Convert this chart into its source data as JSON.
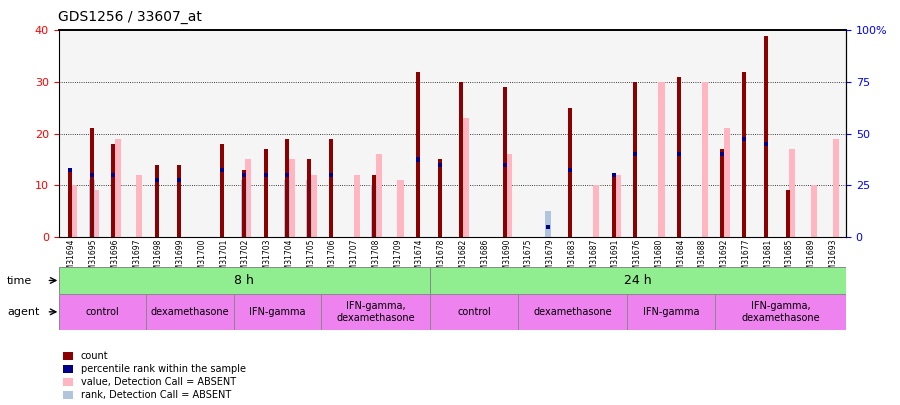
{
  "title": "GDS1256 / 33607_at",
  "samples": [
    "GSM31694",
    "GSM31695",
    "GSM31696",
    "GSM31697",
    "GSM31698",
    "GSM31699",
    "GSM31700",
    "GSM31701",
    "GSM31702",
    "GSM31703",
    "GSM31704",
    "GSM31705",
    "GSM31706",
    "GSM31707",
    "GSM31708",
    "GSM31709",
    "GSM31674",
    "GSM31678",
    "GSM31682",
    "GSM31686",
    "GSM31690",
    "GSM31675",
    "GSM31679",
    "GSM31683",
    "GSM31687",
    "GSM31691",
    "GSM31676",
    "GSM31680",
    "GSM31684",
    "GSM31688",
    "GSM31692",
    "GSM31677",
    "GSM31681",
    "GSM31685",
    "GSM31689",
    "GSM31693"
  ],
  "count": [
    13,
    21,
    18,
    0,
    14,
    14,
    0,
    18,
    13,
    17,
    19,
    15,
    19,
    0,
    12,
    0,
    32,
    15,
    30,
    0,
    29,
    0,
    0,
    25,
    0,
    12,
    30,
    0,
    31,
    0,
    17,
    32,
    39,
    9,
    0,
    0
  ],
  "percentile_rank": [
    13,
    12,
    12,
    0,
    11,
    11,
    0,
    13,
    12,
    12,
    12,
    0,
    12,
    0,
    0,
    0,
    15,
    14,
    0,
    0,
    14,
    0,
    2,
    13,
    0,
    12,
    16,
    0,
    16,
    0,
    16,
    19,
    18,
    0,
    0,
    0
  ],
  "value_absent": [
    10,
    9,
    19,
    12,
    0,
    0,
    0,
    0,
    15,
    0,
    15,
    12,
    0,
    12,
    16,
    11,
    0,
    0,
    23,
    0,
    16,
    0,
    0,
    0,
    10,
    12,
    0,
    30,
    0,
    30,
    21,
    0,
    0,
    17,
    10,
    19
  ],
  "rank_absent": [
    0,
    11,
    0,
    0,
    0,
    0,
    0,
    0,
    11,
    0,
    11,
    11,
    0,
    0,
    10,
    0,
    0,
    0,
    0,
    0,
    0,
    0,
    5,
    0,
    0,
    0,
    0,
    0,
    0,
    0,
    0,
    0,
    0,
    0,
    0,
    0
  ],
  "time_groups": [
    {
      "label": "8 h",
      "color": "#90ee90",
      "start": 0,
      "end": 17
    },
    {
      "label": "24 h",
      "color": "#90ee90",
      "start": 17,
      "end": 36
    }
  ],
  "agent_groups": [
    {
      "label": "control",
      "color": "#ee82ee",
      "start": 0,
      "end": 4
    },
    {
      "label": "dexamethasone",
      "color": "#ee82ee",
      "start": 4,
      "end": 8
    },
    {
      "label": "IFN-gamma",
      "color": "#ee82ee",
      "start": 8,
      "end": 12
    },
    {
      "label": "IFN-gamma,\ndexamethasone",
      "color": "#ee82ee",
      "start": 12,
      "end": 17
    },
    {
      "label": "control",
      "color": "#ee82ee",
      "start": 17,
      "end": 21
    },
    {
      "label": "dexamethasone",
      "color": "#ee82ee",
      "start": 21,
      "end": 26
    },
    {
      "label": "IFN-gamma",
      "color": "#ee82ee",
      "start": 26,
      "end": 30
    },
    {
      "label": "IFN-gamma,\ndexamethasone",
      "color": "#ee82ee",
      "start": 30,
      "end": 36
    }
  ],
  "color_count": "#8B0000",
  "color_percentile": "#00008B",
  "color_value_absent": "#FFB6C1",
  "color_rank_absent": "#B0C4DE",
  "ylim_left": [
    0,
    40
  ],
  "ylim_right": [
    0,
    100
  ],
  "yticks_left": [
    0,
    10,
    20,
    30,
    40
  ],
  "yticks_right": [
    0,
    25,
    50,
    75,
    100
  ],
  "background_color": "#ffffff",
  "plot_bg": "#f5f5f5"
}
